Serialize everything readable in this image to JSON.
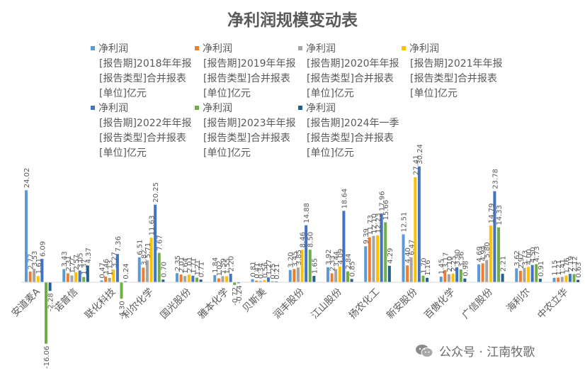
{
  "chart_data": {
    "type": "bar",
    "title": "净利润规模变动表",
    "xlabel": "",
    "ylabel": "",
    "ylim": [
      -16.06,
      30.24
    ],
    "grid": false,
    "legend_position": "top",
    "categories": [
      "安道麦A",
      "诺普信",
      "联化科技",
      "利尔化学",
      "国光股份",
      "雅本化学",
      "贝斯美",
      "润丰股份",
      "江山股份",
      "扬农化工",
      "新安股份",
      "百傲化学",
      "广信股份",
      "海利尔",
      "中农立华"
    ],
    "series": [
      {
        "name": "净利润\n[报告期]2018年年报\n[报告类型]合并报表\n[单位]亿元",
        "color": "#5B9BD5",
        "values": [
          24.02,
          3.43,
          0.47,
          6.51,
          2.35,
          1.84,
          0.81,
          3.2,
          3.92,
          9.39,
          12.51,
          1.45,
          4.69,
          3.62,
          1.15
        ]
      },
      {
        "name": "净利润\n[报告期]2019年年报\n[报告类型]合并报表\n[单位]亿元",
        "color": "#ED7D31",
        "values": [
          2.77,
          2.31,
          1.46,
          3.82,
          2.01,
          1.02,
          0.41,
          3.45,
          2.33,
          11.73,
          4.4,
          3.17,
          4.94,
          2.97,
          1.21
        ]
      },
      {
        "name": "净利润\n[报告期]2020年年报\n[报告类型]合并报表\n[单位]亿元",
        "color": "#A5A5A5",
        "values": [
          3.53,
          1.77,
          1.13,
          5.71,
          1.64,
          1.59,
          0.34,
          3.85,
          3.44,
          12.1,
          6.47,
          2.1,
          5.8,
          3.73,
          1.41
        ]
      },
      {
        "name": "净利润\n[报告期]2021年年报\n[报告类型]合并报表\n[单位]亿元",
        "color": "#FFC000",
        "values": [
          1.61,
          2.57,
          3.27,
          11.63,
          2.01,
          1.55,
          0.56,
          8.46,
          4.09,
          12.23,
          27.41,
          2.25,
          14.79,
          4.0,
          1.76
        ]
      },
      {
        "name": "净利润\n[报告期]2022年年报\n[报告类型]合并报表\n[单位]亿元",
        "color": "#4472C4",
        "values": [
          6.09,
          3.05,
          7.36,
          20.25,
          1.71,
          2.2,
          1.27,
          14.88,
          18.64,
          17.96,
          30.24,
          3.9,
          23.78,
          4.5,
          2.19
        ]
      },
      {
        "name": "净利润\n[报告期]2023年年报\n[报告类型]合并报表\n[单位]亿元",
        "color": "#70AD47",
        "values": [
          -16.06,
          1.37,
          -4.3,
          7.67,
          1.21,
          -0.72,
          0.25,
          8.5,
          2.84,
          15.66,
          1.7,
          3.36,
          14.33,
          4.73,
          2.12
        ]
      },
      {
        "name": "净利润\n[报告期]2024年一季\n[报告类型]合并报表\n[单位]亿元",
        "color": "#255E91",
        "values": [
          -2.28,
          4.37,
          0.24,
          0.7,
          0.71,
          -0.24,
          0.21,
          1.65,
          0.85,
          4.29,
          1.16,
          0.98,
          2.21,
          0.91,
          0.63
        ]
      }
    ],
    "value_labels": [
      [
        "24.02",
        "3.43",
        "0.47",
        "6.51",
        "2.35",
        "1.84",
        "0.81",
        "3.20",
        "3.92",
        "9.39",
        "12.51",
        "1.45",
        "4.69",
        "3.62",
        "1.15"
      ],
      [
        "2.77",
        "2.31",
        "1.46",
        "3.82",
        "2.01",
        "1.02",
        "0.41",
        "3.45",
        "2.33",
        "11.73",
        "4.40",
        "3.17",
        "4.94",
        "2.97",
        "1.21"
      ],
      [
        "3.53",
        "1.77",
        "1.13",
        "5.71",
        "1.64",
        "1.59",
        "0.34",
        "3.85",
        "3.44",
        "12.10",
        "6.47",
        "2.10",
        "5.80",
        "3.73",
        "1.41"
      ],
      [
        "1.61",
        "2.57",
        "3.27",
        "11.63",
        "2.01",
        "1.55",
        "0.56",
        "8.46",
        "4.09",
        "12.23",
        "27.41",
        "2.25",
        "14.79",
        "4.00",
        "1.76"
      ],
      [
        "6.09",
        "3.05",
        "7.36",
        "20.25",
        "1.71",
        "2.20",
        "1.27",
        "14.88",
        "18.64",
        "17.96",
        "30.24",
        "3.90",
        "23.78",
        "4.50",
        "2.19"
      ],
      [
        "-16.06",
        "1.37",
        "-4.30",
        "7.67",
        "1.21",
        "-0.72",
        "0.25",
        "8.50",
        "2.84",
        "15.66",
        "1.70",
        "3.36",
        "14.33",
        "4.73",
        "2.12"
      ],
      [
        "-2.28",
        "4.37",
        "0.24",
        "0.70",
        "0.71",
        "-0.24",
        "0.21",
        "1.65",
        "0.85",
        "4.29",
        "1.16",
        "0.98",
        "2.21",
        "0.91",
        "0.63"
      ]
    ]
  },
  "watermark": {
    "text": "公众号 · 江南牧歌",
    "icon": "wechat-icon",
    "color": "#6b6b6b"
  }
}
